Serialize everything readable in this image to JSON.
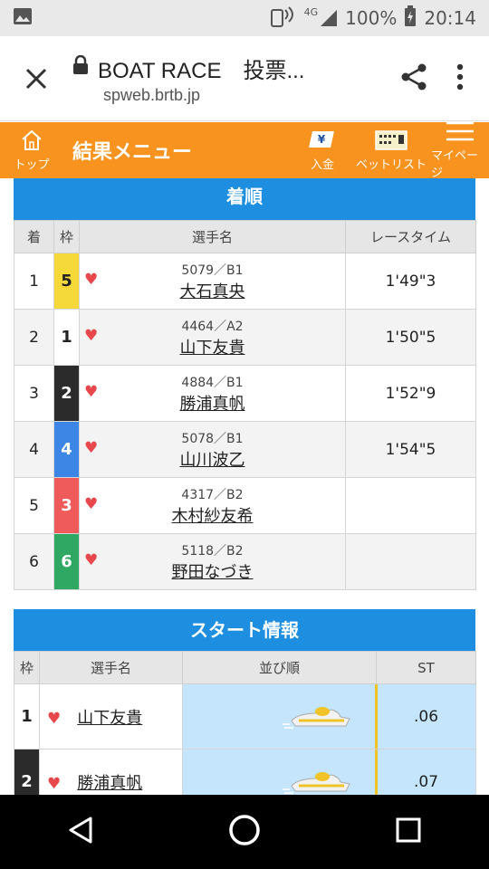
{
  "status": {
    "signal": "4G",
    "battery": "100%",
    "time": "20:14"
  },
  "browser": {
    "title": "BOAT RACE　投票...",
    "url": "spweb.brtb.jp"
  },
  "appbar": {
    "home": "トップ",
    "title": "結果メニュー",
    "deposit": "入金",
    "betlist": "ベットリスト",
    "mypage": "マイページ"
  },
  "results": {
    "heading": "着順",
    "headers": [
      "着",
      "枠",
      "選手名",
      "レースタイム"
    ],
    "rows": [
      {
        "rank": "1",
        "waku": "5",
        "color": "#f5d93b",
        "textColor": "#222",
        "num": "5079／B1",
        "name": "大石真央",
        "time": "1'49\"3"
      },
      {
        "rank": "2",
        "waku": "1",
        "color": "#ffffff",
        "textColor": "#222",
        "num": "4464／A2",
        "name": "山下友貴",
        "time": "1'50\"5"
      },
      {
        "rank": "3",
        "waku": "2",
        "color": "#2b2b2b",
        "textColor": "#fff",
        "num": "4884／B1",
        "name": "勝浦真帆",
        "time": "1'52\"9"
      },
      {
        "rank": "4",
        "waku": "4",
        "color": "#3d86e6",
        "textColor": "#fff",
        "num": "5078／B1",
        "name": "山川波乙",
        "time": "1'54\"5"
      },
      {
        "rank": "5",
        "waku": "3",
        "color": "#ef5a5a",
        "textColor": "#fff",
        "num": "4317／B2",
        "name": "木村紗友希",
        "time": ""
      },
      {
        "rank": "6",
        "waku": "6",
        "color": "#2fa864",
        "textColor": "#fff",
        "num": "5118／B2",
        "name": "野田なづき",
        "time": ""
      }
    ]
  },
  "start": {
    "heading": "スタート情報",
    "headers": [
      "枠",
      "選手名",
      "並び順",
      "ST"
    ],
    "rows": [
      {
        "waku": "1",
        "color": "#ffffff",
        "textColor": "#222",
        "name": "山下友貴",
        "st": ".06"
      },
      {
        "waku": "2",
        "color": "#2b2b2b",
        "textColor": "#fff",
        "name": "勝浦真帆",
        "st": ".07"
      }
    ]
  }
}
